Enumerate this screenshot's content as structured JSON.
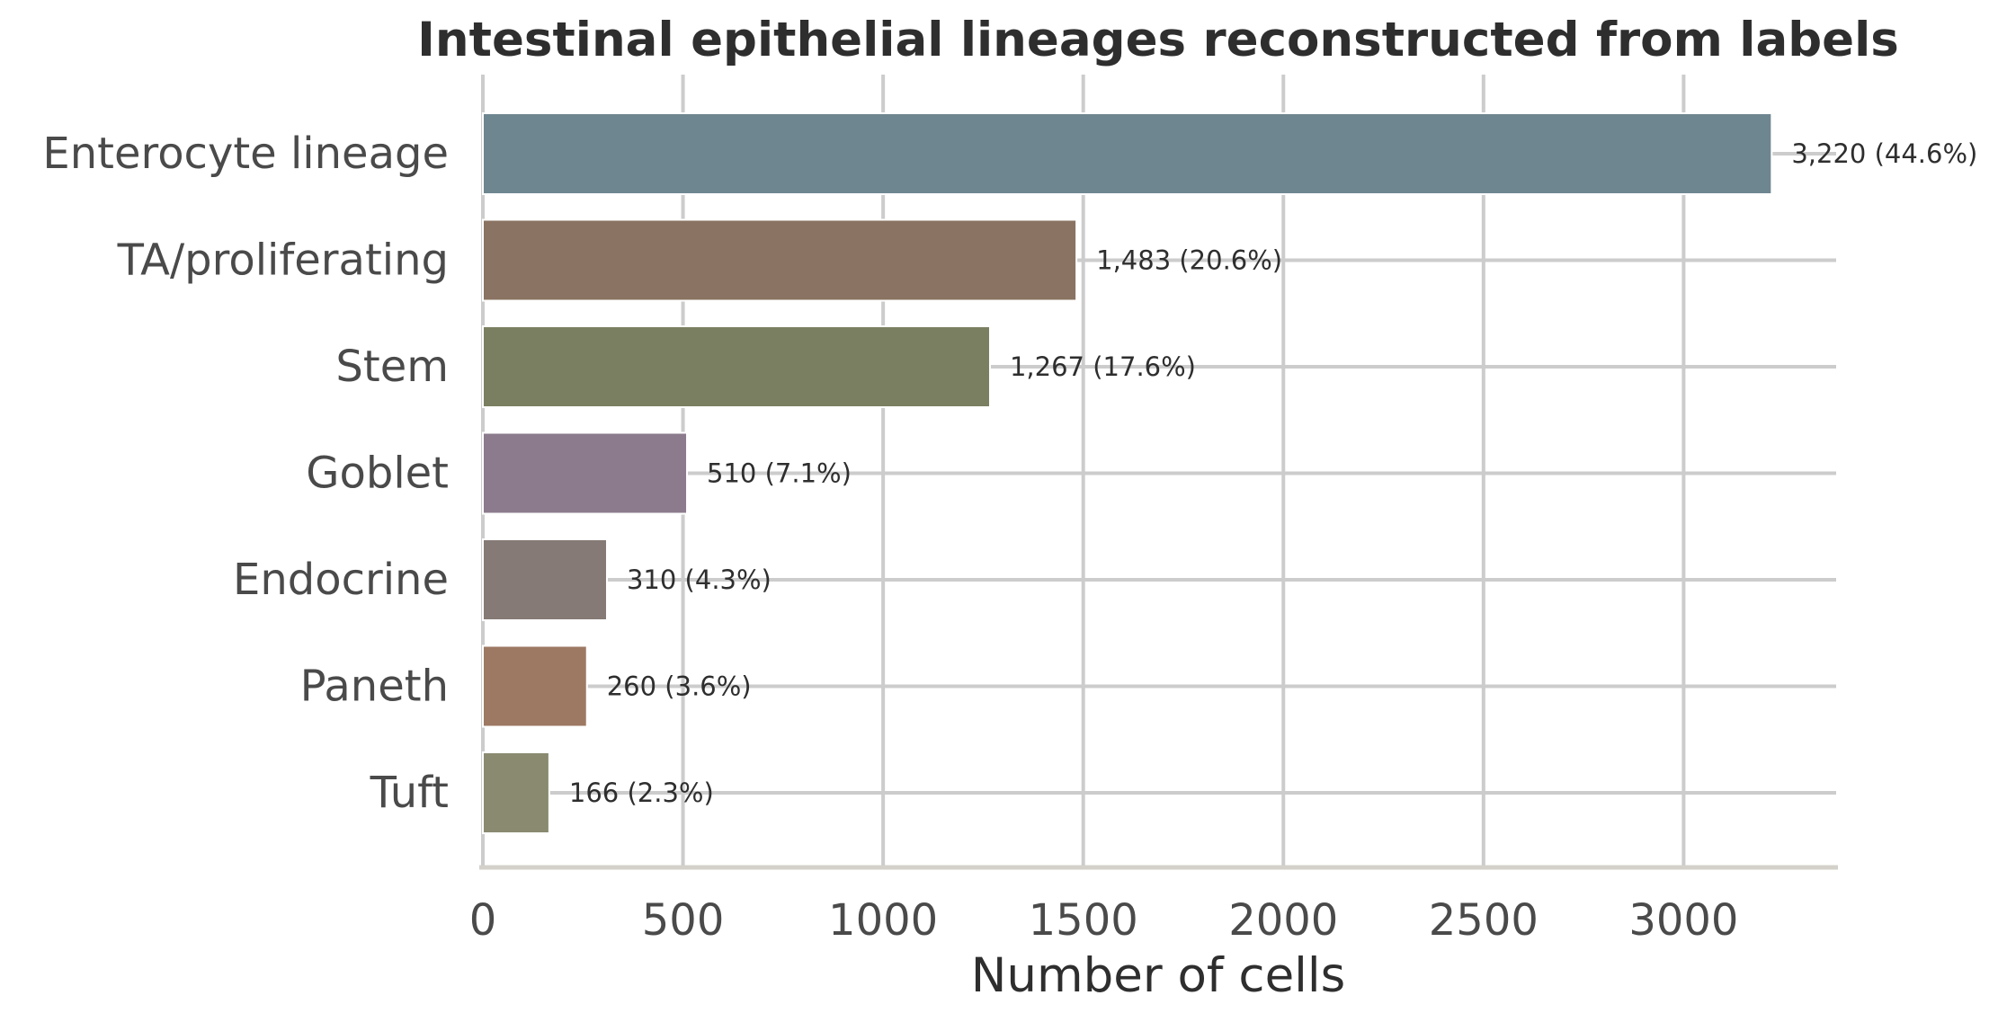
{
  "chart_data": {
    "type": "bar",
    "orientation": "horizontal",
    "title": "Intestinal epithelial lineages reconstructed from labels",
    "xlabel": "Number of cells",
    "ylabel": "",
    "xlim": [
      0,
      3381
    ],
    "xticks": [
      0,
      500,
      1000,
      1500,
      2000,
      2500,
      3000
    ],
    "grid": true,
    "categories": [
      "Enterocyte lineage",
      "TA/proliferating",
      "Stem",
      "Goblet",
      "Endocrine",
      "Paneth",
      "Tuft"
    ],
    "values": [
      3220,
      1483,
      1267,
      510,
      310,
      260,
      166
    ],
    "data_labels": [
      "3,220 (44.6%)",
      "1,483 (20.6%)",
      "1,267 (17.6%)",
      "510 (7.1%)",
      "310 (4.3%)",
      "260 (3.6%)",
      "166 (2.3%)"
    ],
    "colors": [
      "#6e8690",
      "#8a7362",
      "#7b7f61",
      "#8b7b8d",
      "#857a75",
      "#9d7863",
      "#8a8a71"
    ]
  }
}
